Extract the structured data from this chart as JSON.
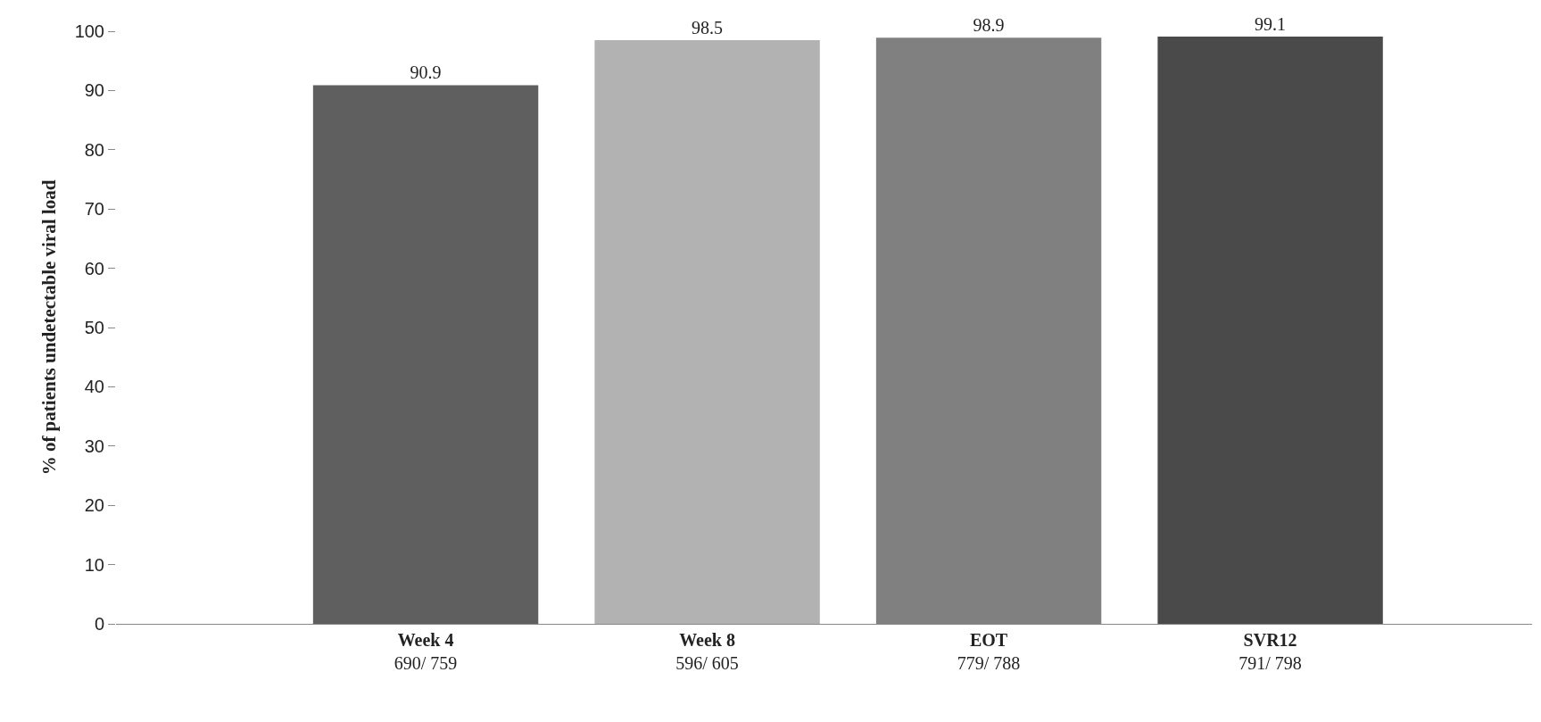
{
  "chart_data": {
    "type": "bar",
    "ylabel": "% of patients undetectable viral load",
    "categories": [
      "Week 4\n690/ 759",
      "Week 8\n596/ 605",
      "EOT\n779/ 788",
      "SVR12\n791/ 798"
    ],
    "values": [
      90.9,
      98.5,
      98.9,
      99.1
    ],
    "colors": [
      "#5f5f5f",
      "#b2b2b2",
      "#808080",
      "#4a4a4a"
    ],
    "ylim": [
      0,
      100
    ],
    "yticks": [
      0,
      10,
      20,
      30,
      40,
      50,
      60,
      70,
      80,
      90,
      100
    ],
    "data_labels": true
  }
}
